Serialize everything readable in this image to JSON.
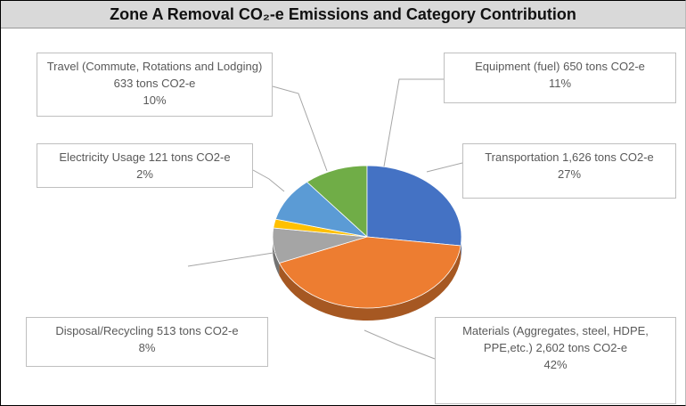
{
  "chart_data": {
    "type": "pie",
    "title": "Zone A Removal CO₂-e Emissions and Category Contribution",
    "categories": [
      "Equipment (fuel) 650 tons CO2-e",
      "Transportation 1,626 tons CO2-e",
      "Materials (Aggregates, steel, HDPE, PPE,etc.) 2,602 tons CO2-e",
      "Disposal/Recycling 513 tons CO2-e",
      "Electricity Usage 121 tons CO2-e",
      "Travel (Commute, Rotations and Lodging) 633 tons CO2-e"
    ],
    "values": [
      11,
      27,
      42,
      8,
      2,
      10
    ],
    "value_labels": [
      "11%",
      "27%",
      "42%",
      "8%",
      "2%",
      "10%"
    ],
    "colors": [
      "#70ad47",
      "#4472c4",
      "#ed7d31",
      "#a5a5a5",
      "#ffc000",
      "#5b9bd5"
    ]
  }
}
